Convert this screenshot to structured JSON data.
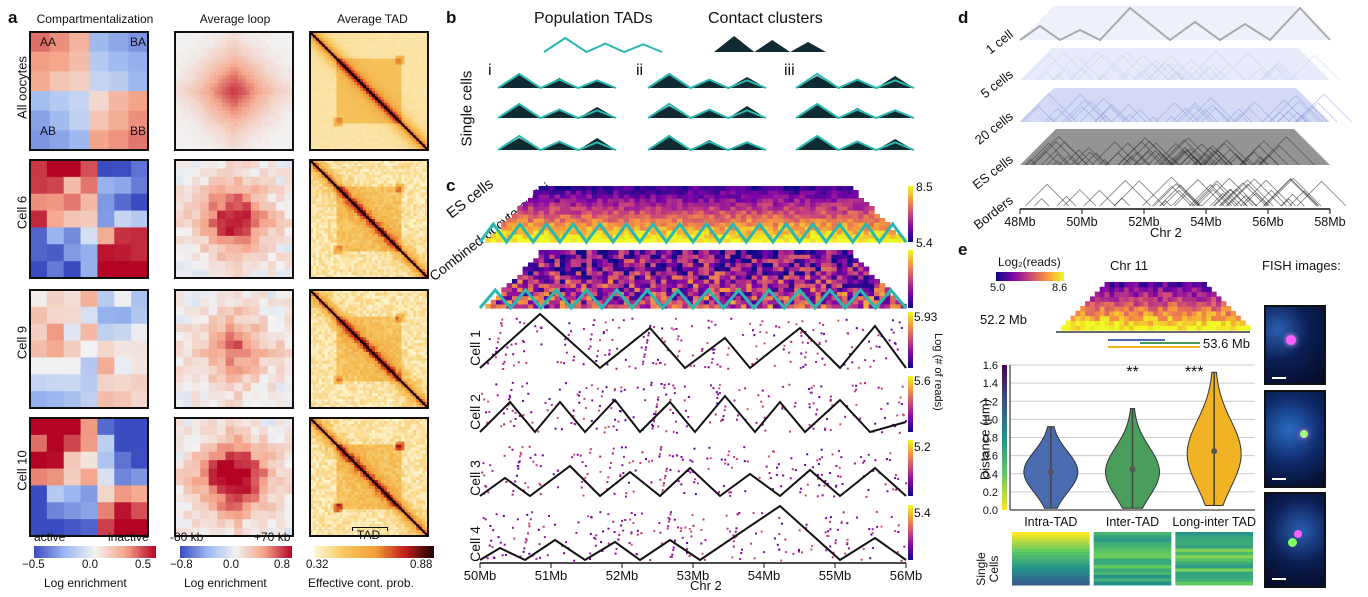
{
  "panel_a": {
    "letter": "a",
    "column_titles": [
      "Compartmentalization",
      "Average loop",
      "Average TAD"
    ],
    "row_labels": [
      "All oocytes",
      "Cell 6",
      "Cell 9",
      "Cell 10"
    ],
    "corner_labels": [
      "AA",
      "BA",
      "AB",
      "BB"
    ],
    "axis_labels": {
      "active": "active",
      "inactive": "inactive",
      "left_kb": "-80 kb",
      "right_kb": "+70 kb",
      "tad": "TAD"
    },
    "colorbars": [
      {
        "ticks": [
          "−0.5",
          "0.0",
          "0.5"
        ],
        "label": "Log enrichment",
        "colors": [
          "#3b4cc0",
          "#f2f2f2",
          "#b40426"
        ]
      },
      {
        "ticks": [
          "−0.8",
          "0.0",
          "0.8"
        ],
        "label": "Log enrichment",
        "colors": [
          "#3b4cc0",
          "#f2f2f2",
          "#b40426"
        ]
      },
      {
        "ticks": [
          "0.32",
          "0.88"
        ],
        "label": "Effective cont. prob.",
        "colors": [
          "#fff7d6",
          "#f3a23a",
          "#c4221b",
          "#1a0000"
        ]
      }
    ]
  },
  "panel_b": {
    "letter": "b",
    "legend": [
      "Population TADs",
      "Contact clusters"
    ],
    "side_label": "Single cells",
    "roman": [
      "i",
      "ii",
      "iii"
    ],
    "outline_color": "#2ab8b0",
    "cluster_color": "#0f2a33"
  },
  "panel_c": {
    "letter": "c",
    "track_labels": [
      "ES cells",
      "Combined oocyte nuclei",
      "Cell 1",
      "Cell 2",
      "Cell 3",
      "Cell 4"
    ],
    "colorbar_max": [
      "8.5",
      "5.93",
      "5.6",
      "5.2",
      "5.4"
    ],
    "colorbar_min": [
      "5.4"
    ],
    "colorbar_label": "Log (# of reads)",
    "x_ticks": [
      "50Mb",
      "51Mb",
      "52Mb",
      "53Mb",
      "54Mb",
      "55Mb",
      "56Mb"
    ],
    "x_label": "Chr 2"
  },
  "panel_d": {
    "letter": "d",
    "track_labels": [
      "1 cell",
      "5 cells",
      "20 cells",
      "ES cells",
      "Borders"
    ],
    "x_ticks": [
      "48Mb",
      "50Mb",
      "52Mb",
      "54Mb",
      "56Mb",
      "58Mb"
    ],
    "x_label": "Chr 2"
  },
  "panel_e": {
    "letter": "e",
    "heatmap_title": "Chr 11",
    "colorbar_label": "Log₂(reads)",
    "colorbar_ticks": [
      "5.0",
      "8.6"
    ],
    "left_coord": "52.2 Mb",
    "right_coord": "53.6 Mb",
    "fish_title": "FISH images:",
    "side_label": "Single Cells",
    "significance": [
      "**",
      "***"
    ]
  },
  "chart_data": {
    "type": "violin",
    "ylabel": "Distance (μm)",
    "ylim": [
      0,
      1.6
    ],
    "y_ticks": [
      "0.0",
      "0.2",
      "0.4",
      "0.6",
      "0.8",
      "1.0",
      "1.2",
      "1.4",
      "1.6"
    ],
    "categories": [
      "Intra-TAD",
      "Inter-TAD",
      "Long-inter TAD"
    ],
    "colors": [
      "#4a6bb0",
      "#4a9e5c",
      "#f0b323"
    ],
    "median": [
      0.42,
      0.45,
      0.65
    ],
    "min": [
      0.02,
      0.02,
      0.05
    ],
    "max": [
      0.92,
      1.12,
      1.52
    ],
    "mode": [
      0.42,
      0.42,
      0.62
    ]
  }
}
